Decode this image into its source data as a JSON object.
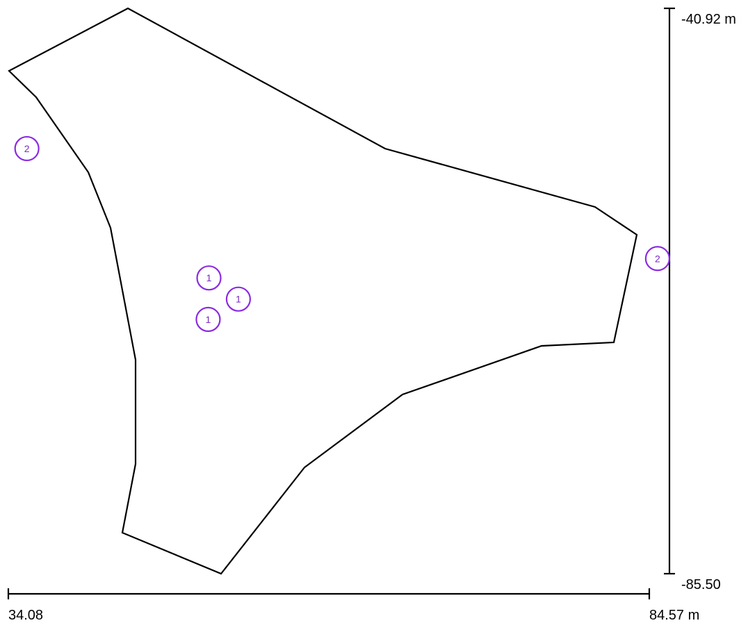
{
  "scale": {
    "y_top_label": "-40.92 m",
    "y_bottom_label": "-85.50",
    "x_left_label": "34.08",
    "x_right_label": "84.57 m"
  },
  "markers": [
    {
      "id": "marker-1",
      "label": "2",
      "x": 35.54,
      "y": -51.98
    },
    {
      "id": "marker-2",
      "label": "2",
      "x": 85.22,
      "y": -60.65
    },
    {
      "id": "marker-3",
      "label": "1",
      "x": 49.88,
      "y": -62.18
    },
    {
      "id": "marker-4",
      "label": "1",
      "x": 52.2,
      "y": -63.85
    },
    {
      "id": "marker-5",
      "label": "1",
      "x": 49.82,
      "y": -65.45
    }
  ],
  "colors": {
    "marker": "#8a2be2",
    "outline": "#000000"
  }
}
